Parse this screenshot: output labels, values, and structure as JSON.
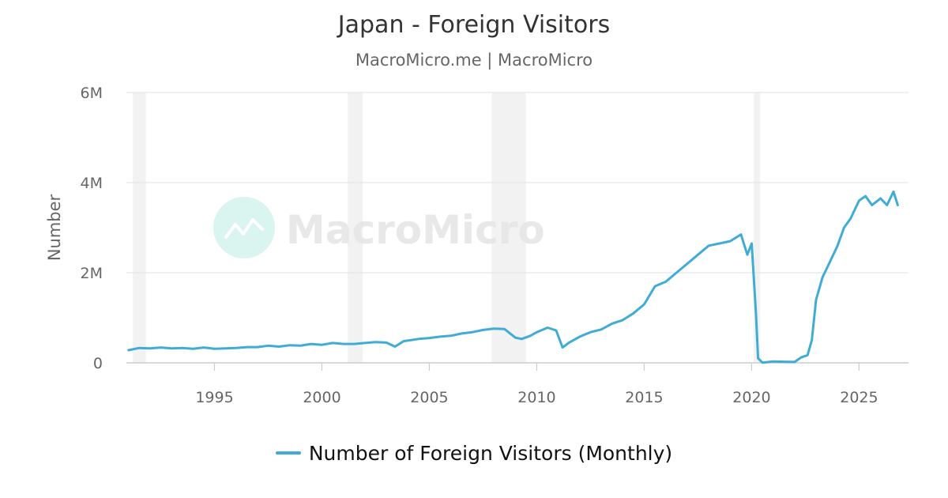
{
  "chart_data": {
    "type": "line",
    "title": "Japan - Foreign Visitors",
    "subtitle": "MacroMicro.me | MacroMicro",
    "ylabel": "Number",
    "xlabel": "",
    "ylim": [
      0,
      6000000
    ],
    "xlim": [
      1990.9,
      2027.3
    ],
    "y_ticks": [
      {
        "value": 0,
        "label": "0"
      },
      {
        "value": 2000000,
        "label": "2M"
      },
      {
        "value": 4000000,
        "label": "4M"
      },
      {
        "value": 6000000,
        "label": "6M"
      }
    ],
    "x_ticks": [
      {
        "value": 1995,
        "label": "1995"
      },
      {
        "value": 2000,
        "label": "2000"
      },
      {
        "value": 2005,
        "label": "2005"
      },
      {
        "value": 2010,
        "label": "2010"
      },
      {
        "value": 2015,
        "label": "2015"
      },
      {
        "value": 2020,
        "label": "2020"
      },
      {
        "value": 2025,
        "label": "2025"
      }
    ],
    "grid": true,
    "legend_position": "bottom-center",
    "recession_shading": [
      [
        1991.2,
        1991.8
      ],
      [
        2001.2,
        2001.9
      ],
      [
        2007.9,
        2009.5
      ],
      [
        2020.1,
        2020.4
      ]
    ],
    "series": [
      {
        "name": "Number of Foreign Visitors (Monthly)",
        "color": "#40acd6",
        "points": [
          [
            1991.0,
            280000
          ],
          [
            1991.5,
            330000
          ],
          [
            1992.0,
            320000
          ],
          [
            1992.5,
            340000
          ],
          [
            1993.0,
            320000
          ],
          [
            1993.5,
            330000
          ],
          [
            1994.0,
            310000
          ],
          [
            1994.5,
            340000
          ],
          [
            1995.0,
            310000
          ],
          [
            1995.5,
            320000
          ],
          [
            1996.0,
            330000
          ],
          [
            1996.5,
            350000
          ],
          [
            1997.0,
            350000
          ],
          [
            1997.5,
            380000
          ],
          [
            1998.0,
            360000
          ],
          [
            1998.5,
            390000
          ],
          [
            1999.0,
            380000
          ],
          [
            1999.5,
            420000
          ],
          [
            2000.0,
            400000
          ],
          [
            2000.5,
            440000
          ],
          [
            2001.0,
            420000
          ],
          [
            2001.5,
            420000
          ],
          [
            2002.0,
            440000
          ],
          [
            2002.5,
            460000
          ],
          [
            2003.0,
            450000
          ],
          [
            2003.4,
            360000
          ],
          [
            2003.8,
            480000
          ],
          [
            2004.5,
            530000
          ],
          [
            2005.0,
            550000
          ],
          [
            2005.5,
            580000
          ],
          [
            2006.0,
            600000
          ],
          [
            2006.5,
            650000
          ],
          [
            2007.0,
            680000
          ],
          [
            2007.5,
            730000
          ],
          [
            2008.0,
            760000
          ],
          [
            2008.5,
            750000
          ],
          [
            2009.0,
            560000
          ],
          [
            2009.3,
            530000
          ],
          [
            2009.7,
            600000
          ],
          [
            2010.0,
            680000
          ],
          [
            2010.5,
            780000
          ],
          [
            2010.9,
            720000
          ],
          [
            2011.2,
            340000
          ],
          [
            2011.5,
            450000
          ],
          [
            2012.0,
            580000
          ],
          [
            2012.5,
            680000
          ],
          [
            2013.0,
            740000
          ],
          [
            2013.5,
            870000
          ],
          [
            2014.0,
            950000
          ],
          [
            2014.5,
            1100000
          ],
          [
            2015.0,
            1300000
          ],
          [
            2015.5,
            1700000
          ],
          [
            2016.0,
            1800000
          ],
          [
            2016.5,
            2000000
          ],
          [
            2017.0,
            2200000
          ],
          [
            2017.5,
            2400000
          ],
          [
            2018.0,
            2600000
          ],
          [
            2018.5,
            2650000
          ],
          [
            2019.0,
            2700000
          ],
          [
            2019.5,
            2850000
          ],
          [
            2019.8,
            2400000
          ],
          [
            2020.0,
            2650000
          ],
          [
            2020.2,
            1100000
          ],
          [
            2020.3,
            100000
          ],
          [
            2020.5,
            5000
          ],
          [
            2021.0,
            30000
          ],
          [
            2021.5,
            25000
          ],
          [
            2022.0,
            20000
          ],
          [
            2022.3,
            120000
          ],
          [
            2022.6,
            170000
          ],
          [
            2022.8,
            500000
          ],
          [
            2023.0,
            1400000
          ],
          [
            2023.3,
            1900000
          ],
          [
            2023.6,
            2200000
          ],
          [
            2024.0,
            2600000
          ],
          [
            2024.3,
            3000000
          ],
          [
            2024.6,
            3200000
          ],
          [
            2025.0,
            3600000
          ],
          [
            2025.3,
            3700000
          ],
          [
            2025.6,
            3500000
          ],
          [
            2026.0,
            3650000
          ],
          [
            2026.3,
            3500000
          ],
          [
            2026.6,
            3800000
          ],
          [
            2026.8,
            3500000
          ]
        ]
      }
    ]
  },
  "watermark": {
    "text": "MacroMicro",
    "icon": "chart-trend-icon",
    "icon_color": "#d6f3ef",
    "text_color": "#e6e6e6"
  },
  "colors": {
    "grid": "#e6e6e6",
    "axis": "#cccccc",
    "shading": "#f2f2f2",
    "text": "#666666"
  }
}
